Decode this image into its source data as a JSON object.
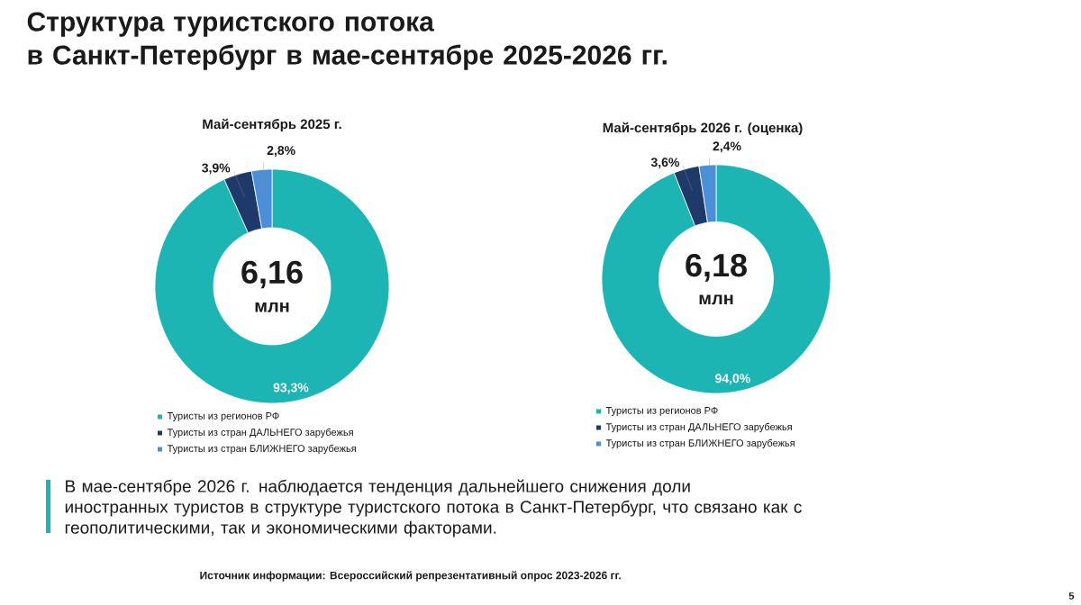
{
  "chart_data": [
    {
      "type": "donut",
      "title": "Структура туристского потока\nв Санкт-Петербург в мае-сентябре 2025-2026 гг.",
      "subtitle": "Май-сентябрь 2025 г.",
      "categories": [
        "Туристы из регионов РФ",
        "Туристы из стран ДАЛЬНЕГО зарубежья",
        "Туристы из стран БЛИЖНЕГО зарубежья"
      ],
      "values": [
        93.3,
        3.9,
        2.8
      ],
      "colors": [
        "#1cb5b4",
        "#1e3a6b",
        "#4a8fd8"
      ],
      "value_labels": [
        "93,3%",
        "3,9%",
        "2,8%"
      ],
      "legend": "bottom",
      "annotations": [
        "6,16",
        "млн",
        "В мае-сентябре 2026 г. наблюдается тенденция дальнейшего снижения доли иностранных туристов в структуре туристского потока в Санкт-Петербург, что связано как с геополитическими, так и экономическими факторами.",
        "Источник информации: Всероссийский репрезентативный опрос 2023-2026 гг.",
        "5"
      ]
    },
    {
      "type": "donut",
      "subtitle": "Май-сентябрь 2026 г. (оценка)",
      "categories": [
        "Туристы из регионов РФ",
        "Туристы из стран ДАЛЬНЕГО зарубежья",
        "Туристы из стран БЛИЖНЕГО зарубежья"
      ],
      "values": [
        94.0,
        3.6,
        2.4
      ],
      "colors": [
        "#1cb5b4",
        "#1e3a6b",
        "#4a8fd8"
      ],
      "value_labels": [
        "94,0%",
        "3,6%",
        "2,4%"
      ],
      "legend": "bottom",
      "annotations": [
        "6,18",
        "млн"
      ]
    }
  ]
}
